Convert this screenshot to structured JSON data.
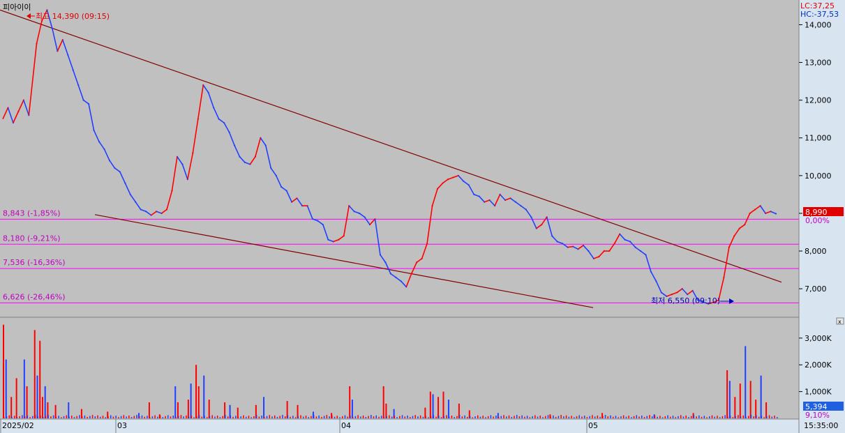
{
  "title": "피아이이",
  "lc_text": "LC:37,25",
  "hc_text": "HC:-37,53",
  "max_note": "최고 14,390 (09:15)",
  "min_note": "최저 6,550 (09:10)",
  "current_price": "8,990",
  "current_change": "0,00%",
  "current_volume": "5,394",
  "current_volume_pct": "9,10%",
  "time_label": "15:35:00",
  "colors": {
    "background": "#c0c0c0",
    "axis_panel": "#d8e4f0",
    "up": "#ff0000",
    "down": "#2040ff",
    "trendline": "#800000",
    "levels": "#ff00ff",
    "price_badge": "#e00000",
    "volume_badge": "#2060e0"
  },
  "chart_data": {
    "type": "line",
    "price_axis": {
      "ticks": [
        "14,000",
        "13,000",
        "12,000",
        "11,000",
        "10,000",
        "9,000",
        "8,000",
        "7,000"
      ],
      "ylim": [
        6300,
        14600
      ]
    },
    "volume_axis": {
      "ticks": [
        "3,000K",
        "2,000K",
        "1,000K"
      ],
      "ylim": [
        0,
        3700
      ]
    },
    "x_ticks": [
      "2025/02",
      "03",
      "04",
      "05"
    ],
    "levels": [
      {
        "value": 8843,
        "label": "8,843 (-1,85%)"
      },
      {
        "value": 8180,
        "label": "8,180 (-9,21%)"
      },
      {
        "value": 7536,
        "label": "7,536 (-16,36%)"
      },
      {
        "value": 6626,
        "label": "6,626 (-26,46%)"
      }
    ],
    "price_series": [
      [
        0,
        11500
      ],
      [
        2,
        11800
      ],
      [
        4,
        11400
      ],
      [
        6,
        11700
      ],
      [
        8,
        12000
      ],
      [
        10,
        11600
      ],
      [
        13,
        13500
      ],
      [
        15,
        14100
      ],
      [
        17,
        14390
      ],
      [
        19,
        13900
      ],
      [
        21,
        13300
      ],
      [
        23,
        13600
      ],
      [
        25,
        13200
      ],
      [
        27,
        12800
      ],
      [
        29,
        12400
      ],
      [
        31,
        12000
      ],
      [
        33,
        11900
      ],
      [
        35,
        11200
      ],
      [
        37,
        10900
      ],
      [
        39,
        10700
      ],
      [
        41,
        10400
      ],
      [
        43,
        10200
      ],
      [
        45,
        10100
      ],
      [
        47,
        9800
      ],
      [
        49,
        9500
      ],
      [
        51,
        9300
      ],
      [
        53,
        9100
      ],
      [
        55,
        9050
      ],
      [
        57,
        8950
      ],
      [
        59,
        9050
      ],
      [
        61,
        9000
      ],
      [
        63,
        9100
      ],
      [
        65,
        9600
      ],
      [
        67,
        10500
      ],
      [
        69,
        10300
      ],
      [
        71,
        9900
      ],
      [
        73,
        10600
      ],
      [
        75,
        11500
      ],
      [
        77,
        12400
      ],
      [
        79,
        12200
      ],
      [
        81,
        11800
      ],
      [
        83,
        11500
      ],
      [
        85,
        11400
      ],
      [
        87,
        11150
      ],
      [
        89,
        10800
      ],
      [
        91,
        10500
      ],
      [
        93,
        10350
      ],
      [
        95,
        10300
      ],
      [
        97,
        10500
      ],
      [
        99,
        11000
      ],
      [
        101,
        10800
      ],
      [
        103,
        10200
      ],
      [
        105,
        10000
      ],
      [
        107,
        9700
      ],
      [
        109,
        9600
      ],
      [
        111,
        9300
      ],
      [
        113,
        9400
      ],
      [
        115,
        9200
      ],
      [
        117,
        9200
      ],
      [
        119,
        8850
      ],
      [
        121,
        8800
      ],
      [
        123,
        8700
      ],
      [
        125,
        8300
      ],
      [
        127,
        8250
      ],
      [
        129,
        8300
      ],
      [
        131,
        8400
      ],
      [
        133,
        9200
      ],
      [
        135,
        9050
      ],
      [
        137,
        9000
      ],
      [
        139,
        8900
      ],
      [
        141,
        8700
      ],
      [
        143,
        8850
      ],
      [
        145,
        7900
      ],
      [
        147,
        7700
      ],
      [
        149,
        7400
      ],
      [
        151,
        7300
      ],
      [
        153,
        7200
      ],
      [
        155,
        7050
      ],
      [
        157,
        7400
      ],
      [
        159,
        7700
      ],
      [
        161,
        7800
      ],
      [
        163,
        8200
      ],
      [
        165,
        9200
      ],
      [
        167,
        9650
      ],
      [
        169,
        9800
      ],
      [
        171,
        9900
      ],
      [
        173,
        9950
      ],
      [
        175,
        10000
      ],
      [
        177,
        9850
      ],
      [
        179,
        9750
      ],
      [
        181,
        9500
      ],
      [
        183,
        9450
      ],
      [
        185,
        9300
      ],
      [
        187,
        9350
      ],
      [
        189,
        9200
      ],
      [
        191,
        9500
      ],
      [
        193,
        9350
      ],
      [
        195,
        9400
      ],
      [
        197,
        9300
      ],
      [
        199,
        9200
      ],
      [
        201,
        9100
      ],
      [
        203,
        8900
      ],
      [
        205,
        8600
      ],
      [
        207,
        8700
      ],
      [
        209,
        8900
      ],
      [
        211,
        8400
      ],
      [
        213,
        8250
      ],
      [
        215,
        8200
      ],
      [
        217,
        8100
      ],
      [
        219,
        8120
      ],
      [
        221,
        8050
      ],
      [
        223,
        8150
      ],
      [
        225,
        8000
      ],
      [
        227,
        7800
      ],
      [
        229,
        7850
      ],
      [
        231,
        8000
      ],
      [
        233,
        8000
      ],
      [
        235,
        8200
      ],
      [
        237,
        8450
      ],
      [
        239,
        8300
      ],
      [
        241,
        8250
      ],
      [
        243,
        8100
      ],
      [
        245,
        8000
      ],
      [
        247,
        7900
      ],
      [
        249,
        7450
      ],
      [
        251,
        7200
      ],
      [
        253,
        6900
      ],
      [
        255,
        6800
      ],
      [
        257,
        6850
      ],
      [
        259,
        6900
      ],
      [
        261,
        7000
      ],
      [
        263,
        6850
      ],
      [
        265,
        6950
      ],
      [
        267,
        6700
      ],
      [
        269,
        6650
      ],
      [
        271,
        6600
      ],
      [
        273,
        6640
      ],
      [
        275,
        6700
      ],
      [
        277,
        7300
      ],
      [
        279,
        8100
      ],
      [
        281,
        8400
      ],
      [
        283,
        8600
      ],
      [
        285,
        8700
      ],
      [
        287,
        9000
      ],
      [
        289,
        9100
      ],
      [
        291,
        9200
      ],
      [
        293,
        9000
      ],
      [
        295,
        9050
      ],
      [
        297,
        8990
      ]
    ],
    "volume_spikes": [
      [
        0,
        3500
      ],
      [
        1,
        2200
      ],
      [
        3,
        800
      ],
      [
        5,
        1500
      ],
      [
        8,
        2200
      ],
      [
        9,
        1200
      ],
      [
        12,
        3300
      ],
      [
        13,
        1600
      ],
      [
        14,
        2900
      ],
      [
        15,
        800
      ],
      [
        16,
        1200
      ],
      [
        17,
        600
      ],
      [
        20,
        500
      ],
      [
        25,
        600
      ],
      [
        30,
        350
      ],
      [
        40,
        250
      ],
      [
        52,
        200
      ],
      [
        56,
        600
      ],
      [
        60,
        150
      ],
      [
        66,
        1200
      ],
      [
        67,
        600
      ],
      [
        71,
        700
      ],
      [
        72,
        1300
      ],
      [
        74,
        2000
      ],
      [
        75,
        1200
      ],
      [
        77,
        1600
      ],
      [
        79,
        700
      ],
      [
        85,
        600
      ],
      [
        87,
        500
      ],
      [
        90,
        400
      ],
      [
        97,
        500
      ],
      [
        100,
        800
      ],
      [
        109,
        650
      ],
      [
        113,
        500
      ],
      [
        119,
        250
      ],
      [
        126,
        200
      ],
      [
        133,
        1200
      ],
      [
        134,
        700
      ],
      [
        146,
        1200
      ],
      [
        147,
        550
      ],
      [
        150,
        350
      ],
      [
        162,
        400
      ],
      [
        164,
        1000
      ],
      [
        165,
        900
      ],
      [
        167,
        800
      ],
      [
        169,
        1000
      ],
      [
        171,
        700
      ],
      [
        175,
        550
      ],
      [
        179,
        300
      ],
      [
        190,
        200
      ],
      [
        210,
        150
      ],
      [
        230,
        200
      ],
      [
        250,
        150
      ],
      [
        265,
        200
      ],
      [
        278,
        1800
      ],
      [
        279,
        1400
      ],
      [
        281,
        800
      ],
      [
        283,
        1300
      ],
      [
        285,
        2700
      ],
      [
        287,
        1400
      ],
      [
        289,
        700
      ],
      [
        291,
        1600
      ],
      [
        293,
        600
      ]
    ],
    "trendlines": [
      {
        "from": [
          0,
          14390
        ],
        "to": [
          1120,
          7175
        ],
        "x_units": "px"
      },
      {
        "from": [
          136,
          8965
        ],
        "to": [
          850,
          6500
        ],
        "x_units": "px"
      }
    ]
  }
}
